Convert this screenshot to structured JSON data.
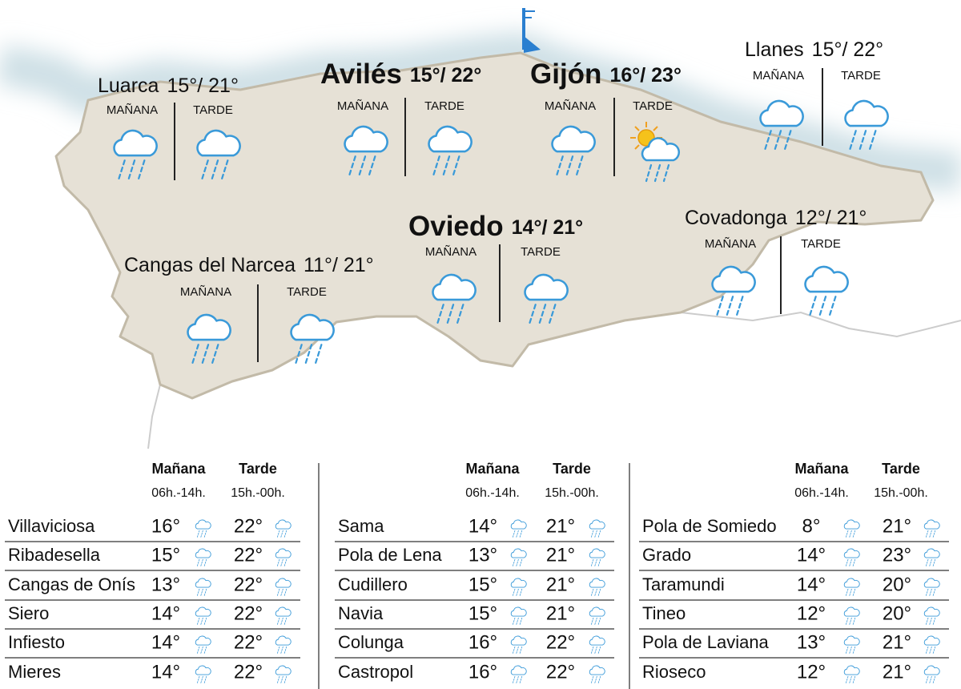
{
  "map": {
    "labels": {
      "morning": "MAÑANA",
      "afternoon": "TARDE"
    },
    "cities": [
      {
        "name": "Luarca",
        "temps": "15°/ 21°"
      },
      {
        "name": "Avilés",
        "temps": "15°/ 22°"
      },
      {
        "name": "Gijón",
        "temps": "16°/ 23°"
      },
      {
        "name": "Llanes",
        "temps": "15°/ 22°"
      },
      {
        "name": "Oviedo",
        "temps": "14°/ 21°"
      },
      {
        "name": "Covadonga",
        "temps": "12°/ 21°"
      },
      {
        "name": "Cangas del Narcea",
        "temps": "11°/ 21°"
      }
    ]
  },
  "table": {
    "header": {
      "morning": "Mañana",
      "afternoon": "Tarde",
      "morning_hours": "06h.-14h.",
      "afternoon_hours": "15h.-00h."
    },
    "columns": [
      [
        [
          "Villaviciosa",
          "16°",
          "22°"
        ],
        [
          "Ribadesella",
          "15°",
          "22°"
        ],
        [
          "Cangas de Onís",
          "13°",
          "22°"
        ],
        [
          "Siero",
          "14°",
          "22°"
        ],
        [
          "Infiesto",
          "14°",
          "22°"
        ],
        [
          "Mieres",
          "14°",
          "22°"
        ]
      ],
      [
        [
          "Sama",
          "14°",
          "21°"
        ],
        [
          "Pola de Lena",
          "13°",
          "21°"
        ],
        [
          "Cudillero",
          "15°",
          "21°"
        ],
        [
          "Navia",
          "15°",
          "21°"
        ],
        [
          "Colunga",
          "16°",
          "22°"
        ],
        [
          "Castropol",
          "16°",
          "22°"
        ]
      ],
      [
        [
          "Pola de Somiedo",
          "8°",
          "21°"
        ],
        [
          "Grado",
          "14°",
          "23°"
        ],
        [
          "Taramundi",
          "14°",
          "20°"
        ],
        [
          "Tineo",
          "12°",
          "20°"
        ],
        [
          "Pola de Laviana",
          "13°",
          "21°"
        ],
        [
          "Rioseco",
          "12°",
          "21°"
        ]
      ]
    ]
  }
}
